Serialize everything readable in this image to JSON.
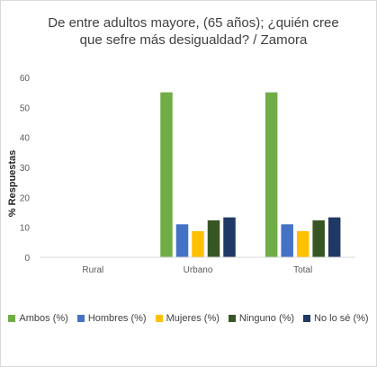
{
  "chart_data": {
    "type": "bar",
    "title": "De entre adultos mayore, (65 años); ¿quién cree que sefre más desigualdad? / Zamora",
    "xlabel": "",
    "ylabel": "% Respuestas",
    "ylim": [
      0,
      60
    ],
    "yticks": [
      0,
      10,
      20,
      30,
      40,
      50,
      60
    ],
    "categories": [
      "Rural",
      "Urbano",
      "Total"
    ],
    "grid": false,
    "legend_position": "bottom",
    "series": [
      {
        "name": "Ambos (%)",
        "color": "#70ad47",
        "values": [
          0,
          55,
          55
        ]
      },
      {
        "name": "Hombres (%)",
        "color": "#4472c4",
        "values": [
          0,
          11,
          11
        ]
      },
      {
        "name": "Mujeres (%)",
        "color": "#ffc000",
        "values": [
          0,
          8.7,
          8.7
        ]
      },
      {
        "name": "Ninguno (%)",
        "color": "#375623",
        "values": [
          0,
          12.3,
          12.3
        ]
      },
      {
        "name": "No lo sé (%)",
        "color": "#203864",
        "values": [
          0,
          13.3,
          13.3
        ]
      }
    ]
  }
}
